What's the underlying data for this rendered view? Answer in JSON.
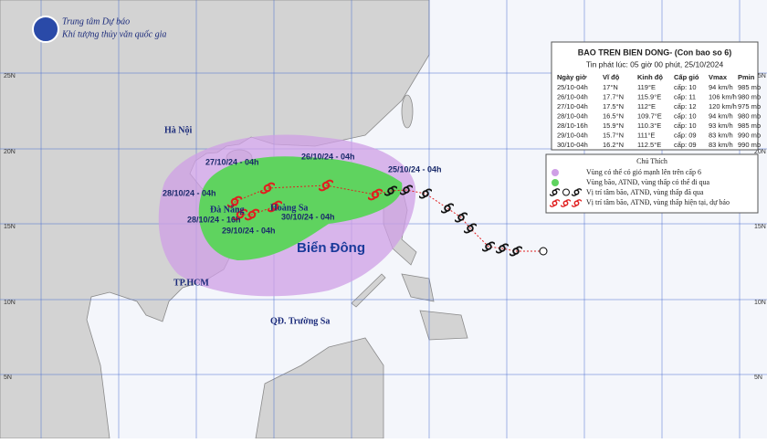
{
  "header": {
    "org": "Trung tâm Dự báo",
    "suborg": "Khí tượng thủy văn quốc gia"
  },
  "bulletin": {
    "title": "BAO TREN BIEN DONG- (Con bao so 6)",
    "issued": "Tin phát lúc: 05 giờ 00 phút, 25/10/2024",
    "columns": [
      "Ngày giờ",
      "Vĩ độ",
      "Kinh độ",
      "Cấp gió",
      "Vmax",
      "Pmin"
    ],
    "rows": [
      [
        "25/10-04h",
        "17°N",
        "119°E",
        "cấp: 10",
        "94 km/h",
        "985 mb"
      ],
      [
        "26/10-04h",
        "17.7°N",
        "115.9°E",
        "cấp: 11",
        "106 km/h",
        "980 mb"
      ],
      [
        "27/10-04h",
        "17.5°N",
        "112°E",
        "cấp: 12",
        "120 km/h",
        "975 mb"
      ],
      [
        "28/10-04h",
        "16.5°N",
        "109.7°E",
        "cấp: 10",
        "94 km/h",
        "980 mb"
      ],
      [
        "28/10-16h",
        "15.9°N",
        "110.3°E",
        "cấp: 10",
        "93 km/h",
        "985 mb"
      ],
      [
        "29/10-04h",
        "15.7°N",
        "111°E",
        "cấp: 09",
        "83 km/h",
        "990 mb"
      ],
      [
        "30/10-04h",
        "16.2°N",
        "112.5°E",
        "cấp: 09",
        "83 km/h",
        "990 mb"
      ]
    ]
  },
  "legend": {
    "title": "Chú Thích",
    "items": [
      "Vùng có thể có gió mạnh lên trên cấp 6",
      "Vùng bão, ATNĐ, vùng thấp có thể đi qua",
      "Vị trí tâm bão, ATNĐ, vùng thấp đã qua",
      "Vị trí tâm bão, ATNĐ, vùng thấp hiện tại, dự báo"
    ]
  },
  "map": {
    "places": [
      "Hà Nội",
      "Đà Nẵng",
      "Hoàng Sa",
      "TP.HCM",
      "QĐ. Trường Sa"
    ],
    "sea": "Biển Đông",
    "track_labels": [
      "25/10/24 - 04h",
      "26/10/24 - 04h",
      "27/10/24 - 04h",
      "28/10/24 - 04h",
      "28/10/24 - 16h",
      "29/10/24 - 04h",
      "30/10/24 - 04h"
    ],
    "lat_labels": [
      "25N",
      "20N",
      "15N",
      "10N",
      "5N"
    ]
  }
}
